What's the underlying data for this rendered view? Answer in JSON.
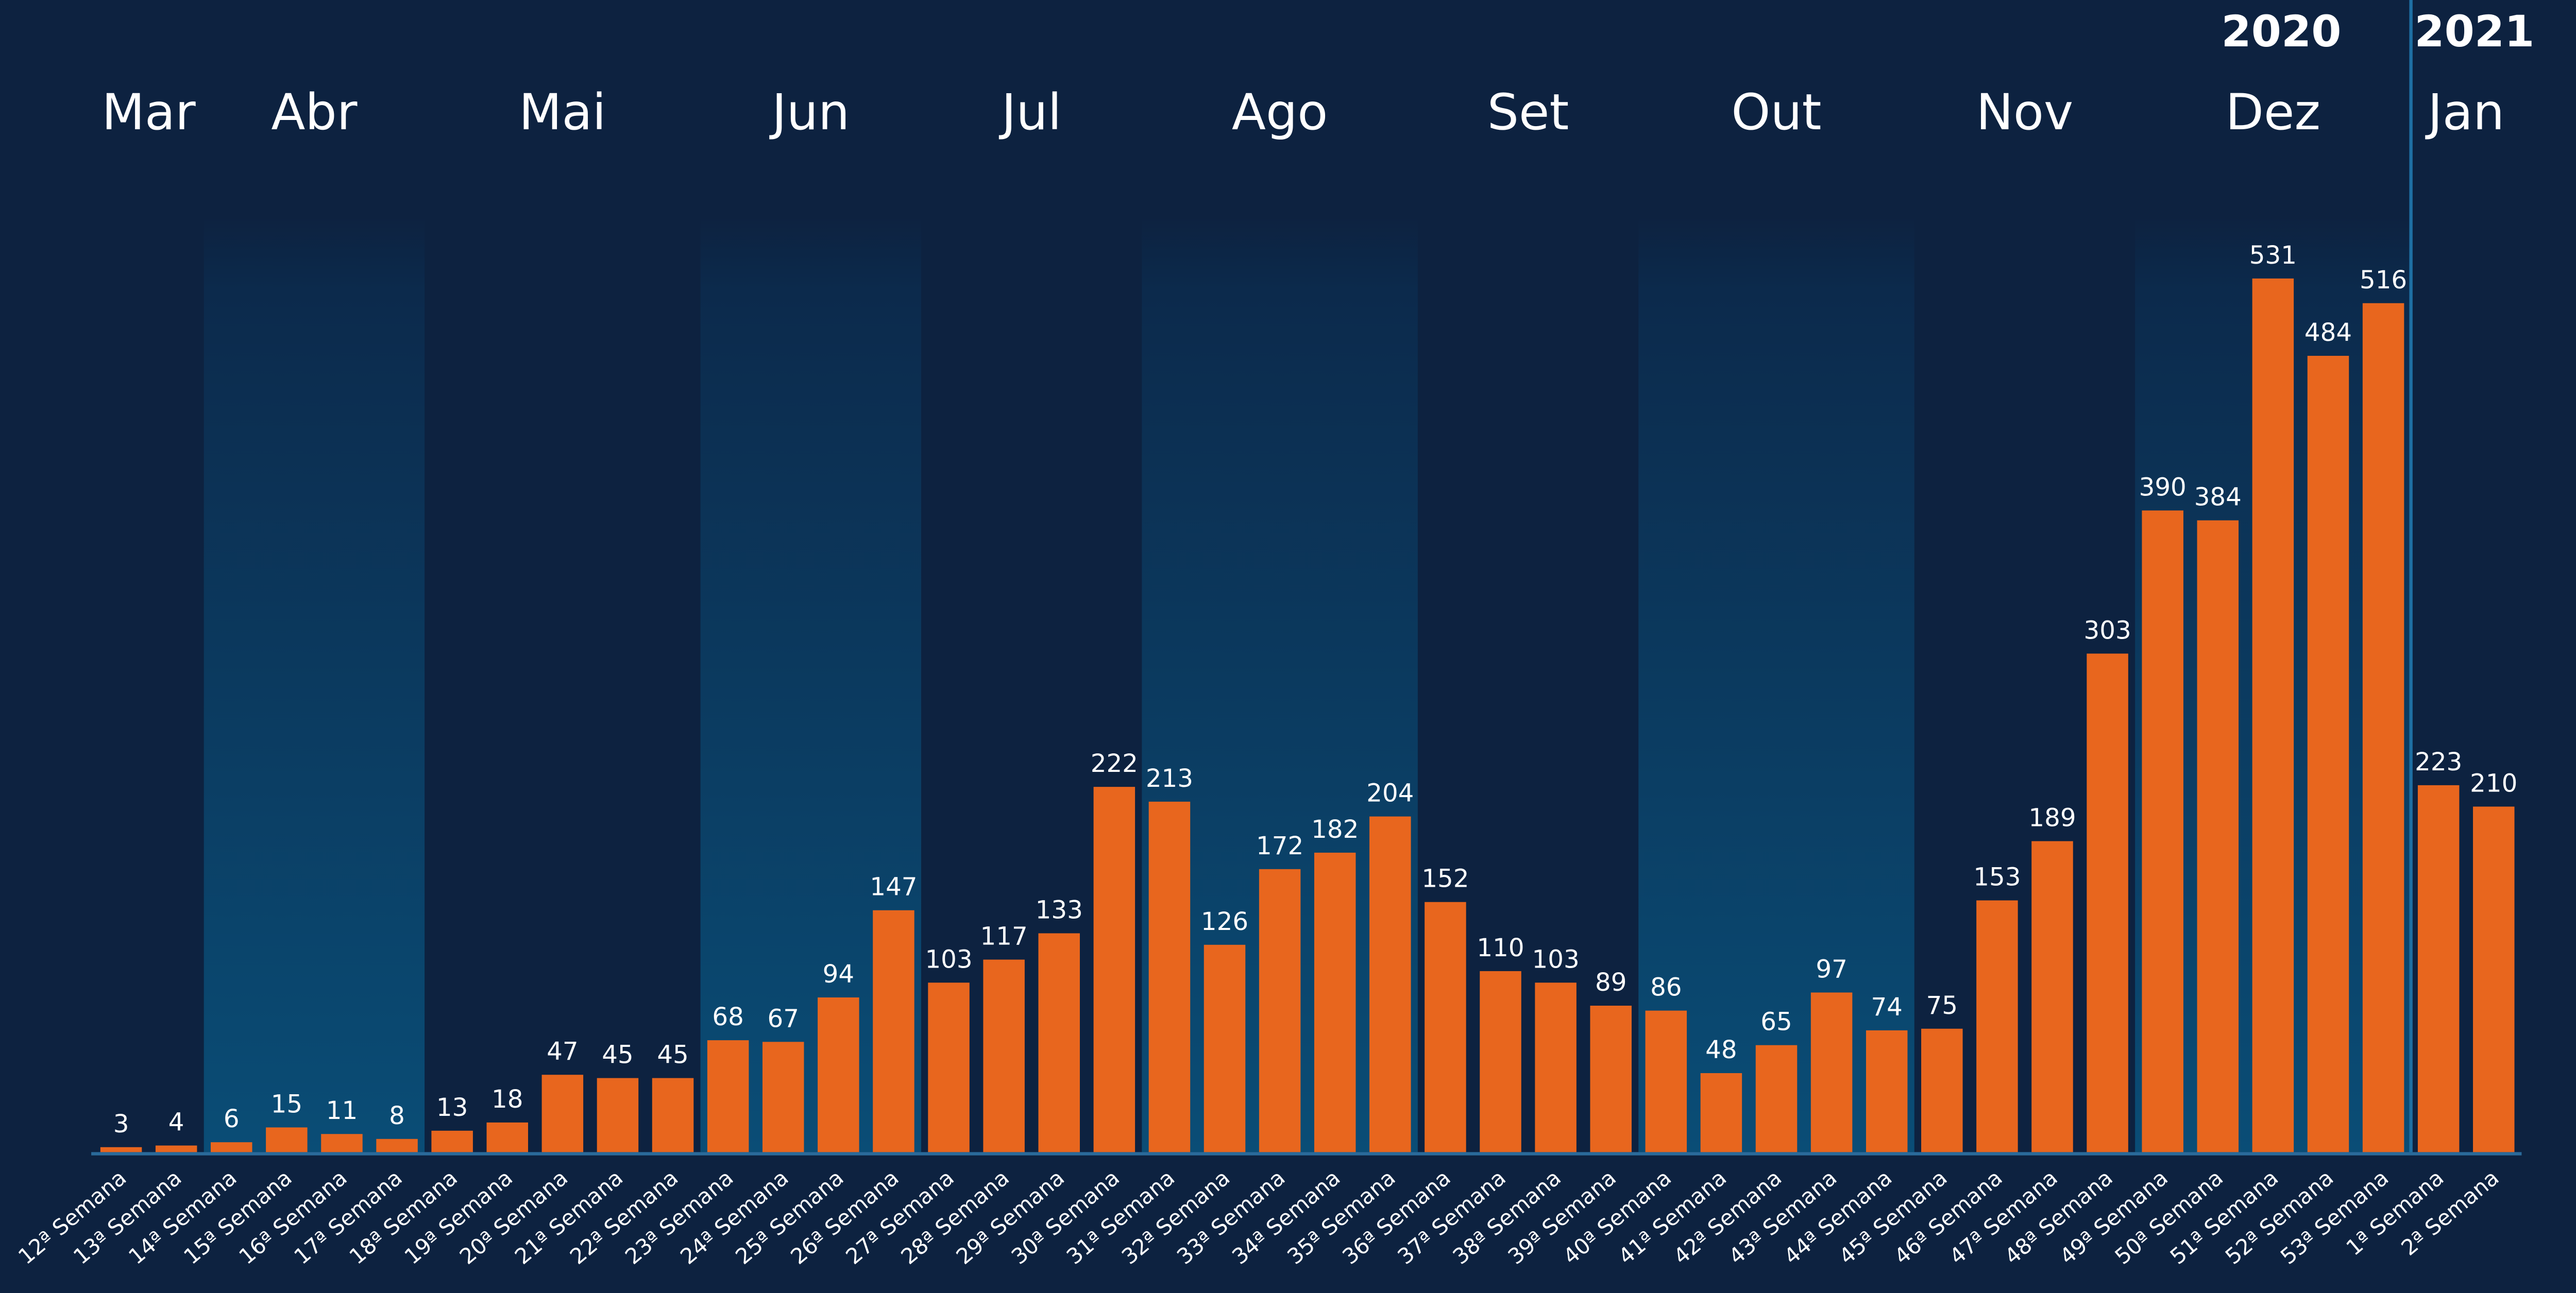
{
  "chart_data": {
    "type": "bar",
    "categories": [
      "12ª Semana",
      "13ª Semana",
      "14ª Semana",
      "15ª Semana",
      "16ª Semana",
      "17ª Semana",
      "18ª Semana",
      "19ª Semana",
      "20ª Semana",
      "21ª Semana",
      "22ª Semana",
      "23ª Semana",
      "24ª Semana",
      "25ª Semana",
      "26ª Semana",
      "27ª Semana",
      "28ª Semana",
      "29ª Semana",
      "30ª Semana",
      "31ª Semana",
      "32ª Semana",
      "33ª Semana",
      "34ª Semana",
      "35ª Semana",
      "36ª Semana",
      "37ª Semana",
      "38ª Semana",
      "39ª Semana",
      "40ª Semana",
      "41ª Semana",
      "42ª Semana",
      "43ª Semana",
      "44ª Semana",
      "45ª Semana",
      "46ª Semana",
      "47ª Semana",
      "48ª Semana",
      "49ª Semana",
      "50ª Semana",
      "51ª Semana",
      "52ª Semana",
      "53ª Semana",
      "1ª Semana",
      "2ª Semana"
    ],
    "values": [
      3,
      4,
      6,
      15,
      11,
      8,
      13,
      18,
      47,
      45,
      45,
      68,
      67,
      94,
      147,
      103,
      117,
      133,
      222,
      213,
      126,
      172,
      182,
      204,
      152,
      110,
      103,
      89,
      86,
      48,
      65,
      97,
      74,
      75,
      153,
      189,
      303,
      390,
      384,
      531,
      484,
      516,
      223,
      210
    ],
    "color": "#e8661e",
    "months": [
      "Mar",
      "Abr",
      "Mai",
      "Jun",
      "Jul",
      "Ago",
      "Set",
      "Out",
      "Nov",
      "Dez",
      "Jan"
    ],
    "years": [
      "2020",
      "2021"
    ]
  }
}
